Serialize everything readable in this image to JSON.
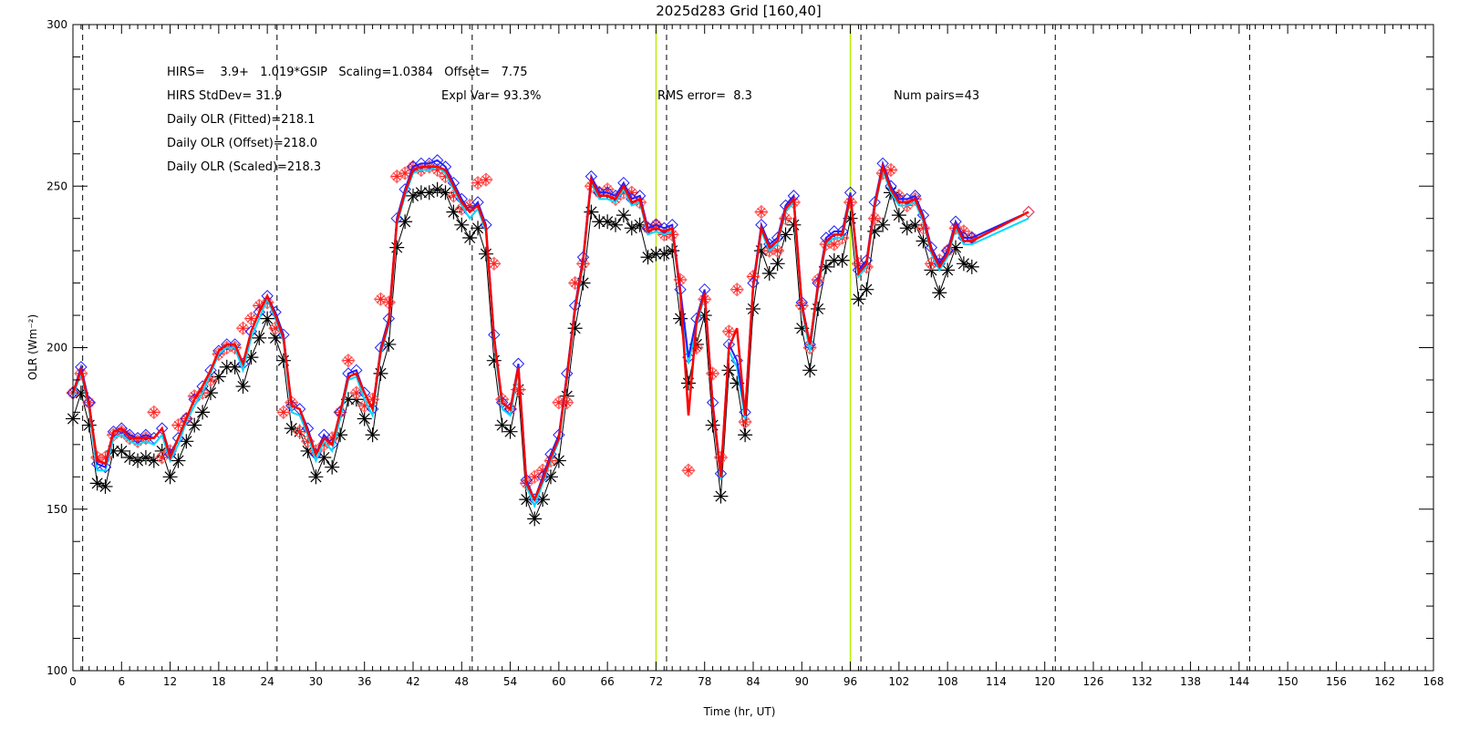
{
  "chart_data": {
    "type": "line",
    "title": "2025d283 Grid [160,40]",
    "xlabel": "Time (hr, UT)",
    "ylabel": "OLR (Wm⁻²)",
    "xlim": [
      0,
      168
    ],
    "ylim": [
      100,
      300
    ],
    "xticks": [
      0,
      6,
      12,
      18,
      24,
      30,
      36,
      42,
      48,
      54,
      60,
      66,
      72,
      78,
      84,
      90,
      96,
      102,
      108,
      114,
      120,
      126,
      132,
      138,
      144,
      150,
      156,
      162,
      168
    ],
    "yticks": [
      100,
      150,
      200,
      250,
      300
    ],
    "vlines_dashed": [
      1.2,
      25.2,
      49.3,
      73.3,
      97.3,
      121.3,
      145.3
    ],
    "vlines_green": [
      72,
      96
    ],
    "annotations": {
      "line1": "HIRS=    3.9+   1.019*GSIP   Scaling=1.0384   Offset=   7.75",
      "hirs_stddev": "HIRS StdDev= 31.9",
      "expl_var": "Expl Var= 93.3%",
      "rms_error": "RMS error=  8.3",
      "num_pairs": "Num pairs=43",
      "daily_fitted": "Daily OLR (Fitted)=218.1",
      "daily_offset": "Daily OLR (Offset)=218.0",
      "daily_scaled": "Daily OLR (Scaled)=218.3"
    },
    "series": [
      {
        "key": "gsip",
        "color": "#000000",
        "marker": "asterisk",
        "x": [
          0,
          1,
          2,
          3,
          4,
          5,
          6,
          7,
          8,
          9,
          10,
          11,
          12,
          13,
          14,
          15,
          16,
          17,
          18,
          19,
          20,
          21,
          22,
          23,
          24,
          25,
          26,
          27,
          28,
          29,
          30,
          31,
          32,
          33,
          34,
          35,
          36,
          37,
          38,
          39,
          40,
          41,
          42,
          43,
          44,
          45,
          46,
          47,
          48,
          49,
          50,
          51,
          52,
          53,
          54,
          55,
          56,
          57,
          58,
          59,
          60,
          61,
          62,
          63,
          64,
          65,
          66,
          67,
          68,
          69,
          70,
          71,
          72,
          73,
          74,
          75,
          76,
          77,
          78,
          79,
          80,
          81,
          82,
          83,
          84,
          85,
          86,
          87,
          88,
          89,
          90,
          91,
          92,
          93,
          94,
          95,
          96,
          97,
          98,
          99,
          100,
          101,
          102,
          103,
          104,
          105,
          106,
          107,
          108,
          109,
          110,
          111
        ],
        "y": [
          178,
          186,
          176,
          158,
          157,
          168,
          168,
          166,
          165,
          166,
          165,
          168,
          160,
          165,
          171,
          176,
          180,
          186,
          191,
          194,
          194,
          188,
          197,
          203,
          209,
          203,
          196,
          175,
          174,
          168,
          160,
          166,
          163,
          173,
          184,
          184,
          178,
          173,
          192,
          201,
          231,
          239,
          247,
          248,
          248,
          249,
          248,
          242,
          238,
          234,
          237,
          229,
          196,
          176,
          174,
          187,
          153,
          147,
          153,
          160,
          165,
          185,
          206,
          220,
          242,
          239,
          239,
          238,
          241,
          237,
          238,
          228,
          229,
          229,
          230,
          209,
          189,
          201,
          210,
          176,
          154,
          193,
          189,
          173,
          212,
          230,
          223,
          226,
          235,
          238,
          206,
          193,
          212,
          225,
          227,
          227,
          240,
          215,
          218,
          236,
          238,
          248,
          241,
          237,
          238,
          233,
          224,
          217,
          224,
          231,
          226,
          225
        ]
      },
      {
        "key": "hirs",
        "color": "#ff2020",
        "marker": "asterisk",
        "x": [
          0,
          1,
          2,
          3,
          4,
          5,
          6,
          7,
          8,
          9,
          10,
          11,
          12,
          13,
          14,
          15,
          16,
          17,
          18,
          19,
          20,
          21,
          22,
          23,
          24,
          25,
          26,
          27,
          28,
          29,
          30,
          31,
          32,
          33,
          34,
          35,
          36,
          37,
          38,
          39,
          40,
          41,
          42,
          43,
          44,
          45,
          46,
          47,
          48,
          49,
          50,
          51,
          52,
          53,
          54,
          55,
          56,
          57,
          58,
          59,
          60,
          61,
          62,
          63,
          64,
          65,
          66,
          67,
          68,
          69,
          70,
          71,
          72,
          73,
          74,
          75,
          76,
          77,
          78,
          79,
          80,
          81,
          82,
          83,
          84,
          85,
          86,
          87,
          88,
          89,
          90,
          91,
          92,
          93,
          94,
          95,
          96,
          97,
          98,
          99,
          100,
          101,
          102,
          103,
          104,
          105,
          106,
          107,
          108,
          109,
          110,
          111
        ],
        "y": [
          186,
          192,
          183,
          166,
          166,
          173,
          174,
          172,
          171,
          172,
          180,
          166,
          168,
          176,
          178,
          185,
          186,
          190,
          198,
          200,
          200,
          206,
          209,
          213,
          214,
          206,
          180,
          183,
          174,
          171,
          168,
          170,
          172,
          180,
          196,
          186,
          182,
          184,
          215,
          214,
          253,
          254,
          256,
          255,
          256,
          255,
          253,
          247,
          243,
          244,
          251,
          252,
          226,
          184,
          181,
          187,
          158,
          160,
          162,
          165,
          183,
          183,
          220,
          226,
          250,
          248,
          249,
          246,
          248,
          248,
          245,
          237,
          238,
          235,
          235,
          221,
          162,
          200,
          215,
          192,
          166,
          205,
          218,
          177,
          222,
          242,
          230,
          230,
          240,
          245,
          213,
          200,
          221,
          232,
          232,
          234,
          245,
          226,
          225,
          240,
          254,
          255,
          247,
          244,
          246,
          237,
          226,
          227,
          230,
          237,
          236,
          234
        ]
      },
      {
        "key": "fitted",
        "color": "#2020ff",
        "marker": "diamond",
        "x": [
          0,
          1,
          2,
          3,
          4,
          5,
          6,
          7,
          8,
          9,
          10,
          11,
          12,
          13,
          14,
          15,
          16,
          17,
          18,
          19,
          20,
          21,
          22,
          23,
          24,
          25,
          26,
          27,
          28,
          29,
          30,
          31,
          32,
          33,
          34,
          35,
          36,
          37,
          38,
          39,
          40,
          41,
          42,
          43,
          44,
          45,
          46,
          47,
          48,
          49,
          50,
          51,
          52,
          53,
          54,
          55,
          56,
          57,
          58,
          59,
          60,
          61,
          62,
          63,
          64,
          65,
          66,
          67,
          68,
          69,
          70,
          71,
          72,
          73,
          74,
          75,
          76,
          77,
          78,
          79,
          80,
          81,
          82,
          83,
          84,
          85,
          86,
          87,
          88,
          89,
          90,
          91,
          92,
          93,
          94,
          95,
          96,
          97,
          98,
          99,
          100,
          101,
          102,
          103,
          104,
          105,
          106,
          107,
          108,
          109,
          110,
          111,
          118
        ],
        "y": [
          186,
          194,
          183,
          164,
          163,
          174,
          175,
          173,
          172,
          173,
          172,
          175,
          167,
          172,
          178,
          184,
          188,
          193,
          199,
          201,
          201,
          195,
          205,
          211,
          216,
          211,
          204,
          182,
          181,
          175,
          167,
          173,
          170,
          180,
          192,
          193,
          186,
          181,
          200,
          209,
          240,
          249,
          256,
          257,
          257,
          258,
          256,
          251,
          246,
          242,
          245,
          238,
          204,
          183,
          181,
          195,
          159,
          153,
          160,
          167,
          173,
          192,
          213,
          228,
          253,
          248,
          248,
          247,
          251,
          246,
          247,
          237,
          238,
          237,
          238,
          218,
          197,
          209,
          218,
          183,
          161,
          201,
          196,
          180,
          220,
          238,
          232,
          234,
          244,
          247,
          214,
          201,
          220,
          234,
          236,
          236,
          248,
          224,
          227,
          245,
          257,
          250,
          246,
          246,
          247,
          241,
          231,
          226,
          230,
          239,
          234,
          234,
          242
        ]
      },
      {
        "key": "scaled",
        "color": "#00d8ff",
        "marker": "none",
        "x": [
          0,
          1,
          2,
          3,
          4,
          5,
          6,
          7,
          8,
          9,
          10,
          11,
          12,
          13,
          14,
          15,
          16,
          17,
          18,
          19,
          20,
          21,
          22,
          23,
          24,
          25,
          26,
          27,
          28,
          29,
          30,
          31,
          32,
          33,
          34,
          35,
          36,
          37,
          38,
          39,
          40,
          41,
          42,
          43,
          44,
          45,
          46,
          47,
          48,
          49,
          50,
          51,
          52,
          53,
          54,
          55,
          56,
          57,
          58,
          59,
          60,
          61,
          62,
          63,
          64,
          65,
          66,
          67,
          68,
          69,
          70,
          71,
          72,
          73,
          74,
          75,
          76,
          77,
          78,
          79,
          80,
          81,
          82,
          83,
          84,
          85,
          86,
          87,
          88,
          89,
          90,
          91,
          92,
          93,
          94,
          95,
          96,
          97,
          98,
          99,
          100,
          101,
          102,
          103,
          104,
          105,
          106,
          107,
          108,
          109,
          110,
          111,
          118
        ],
        "y": [
          185,
          192,
          181,
          162,
          162,
          172,
          173,
          171,
          170,
          171,
          170,
          173,
          165,
          170,
          177,
          182,
          186,
          192,
          198,
          200,
          200,
          193,
          203,
          209,
          215,
          209,
          202,
          180,
          179,
          173,
          165,
          171,
          168,
          178,
          190,
          191,
          184,
          179,
          198,
          207,
          238,
          247,
          254,
          255,
          255,
          256,
          254,
          249,
          244,
          240,
          243,
          236,
          202,
          181,
          179,
          193,
          157,
          151,
          158,
          165,
          171,
          190,
          211,
          226,
          251,
          246,
          246,
          245,
          249,
          244,
          245,
          235,
          236,
          235,
          236,
          216,
          195,
          207,
          216,
          181,
          159,
          199,
          194,
          178,
          218,
          236,
          230,
          232,
          242,
          245,
          212,
          199,
          218,
          232,
          234,
          234,
          246,
          222,
          225,
          243,
          255,
          248,
          244,
          244,
          245,
          239,
          229,
          224,
          228,
          237,
          232,
          232,
          240
        ]
      },
      {
        "key": "offset",
        "color": "#ff0000",
        "marker": "none",
        "x": [
          0,
          1,
          2,
          3,
          4,
          5,
          6,
          7,
          8,
          9,
          10,
          11,
          12,
          13,
          14,
          15,
          16,
          17,
          18,
          19,
          20,
          21,
          22,
          23,
          24,
          25,
          26,
          27,
          28,
          29,
          30,
          31,
          32,
          33,
          34,
          35,
          36,
          37,
          38,
          39,
          40,
          41,
          42,
          43,
          44,
          45,
          46,
          47,
          48,
          49,
          50,
          51,
          52,
          53,
          54,
          55,
          56,
          57,
          58,
          59,
          60,
          61,
          62,
          63,
          64,
          65,
          66,
          67,
          68,
          69,
          70,
          71,
          72,
          73,
          74,
          75,
          76,
          77,
          78,
          79,
          80,
          81,
          82,
          83,
          84,
          85,
          86,
          87,
          88,
          89,
          90,
          91,
          92,
          93,
          94,
          95,
          96,
          97,
          98,
          99,
          100,
          101,
          102,
          103,
          104,
          105,
          106,
          107,
          108,
          109,
          110,
          111,
          118
        ],
        "y": [
          186,
          193,
          182,
          165,
          164,
          174,
          175,
          172,
          172,
          172,
          172,
          175,
          166,
          172,
          178,
          184,
          188,
          193,
          199,
          201,
          201,
          195,
          205,
          211,
          216,
          210,
          203,
          182,
          181,
          174,
          167,
          172,
          170,
          180,
          191,
          192,
          186,
          181,
          199,
          208,
          239,
          248,
          255,
          256,
          256,
          256,
          255,
          250,
          245,
          242,
          244,
          237,
          203,
          183,
          181,
          194,
          158,
          153,
          159,
          166,
          172,
          191,
          212,
          227,
          252,
          247,
          247,
          246,
          250,
          245,
          246,
          236,
          237,
          236,
          237,
          217,
          179,
          208,
          217,
          182,
          160,
          200,
          206,
          179,
          219,
          237,
          231,
          233,
          243,
          246,
          213,
          201,
          219,
          233,
          235,
          235,
          247,
          223,
          226,
          244,
          256,
          249,
          245,
          245,
          246,
          240,
          230,
          225,
          229,
          238,
          233,
          233,
          242
        ]
      }
    ]
  }
}
